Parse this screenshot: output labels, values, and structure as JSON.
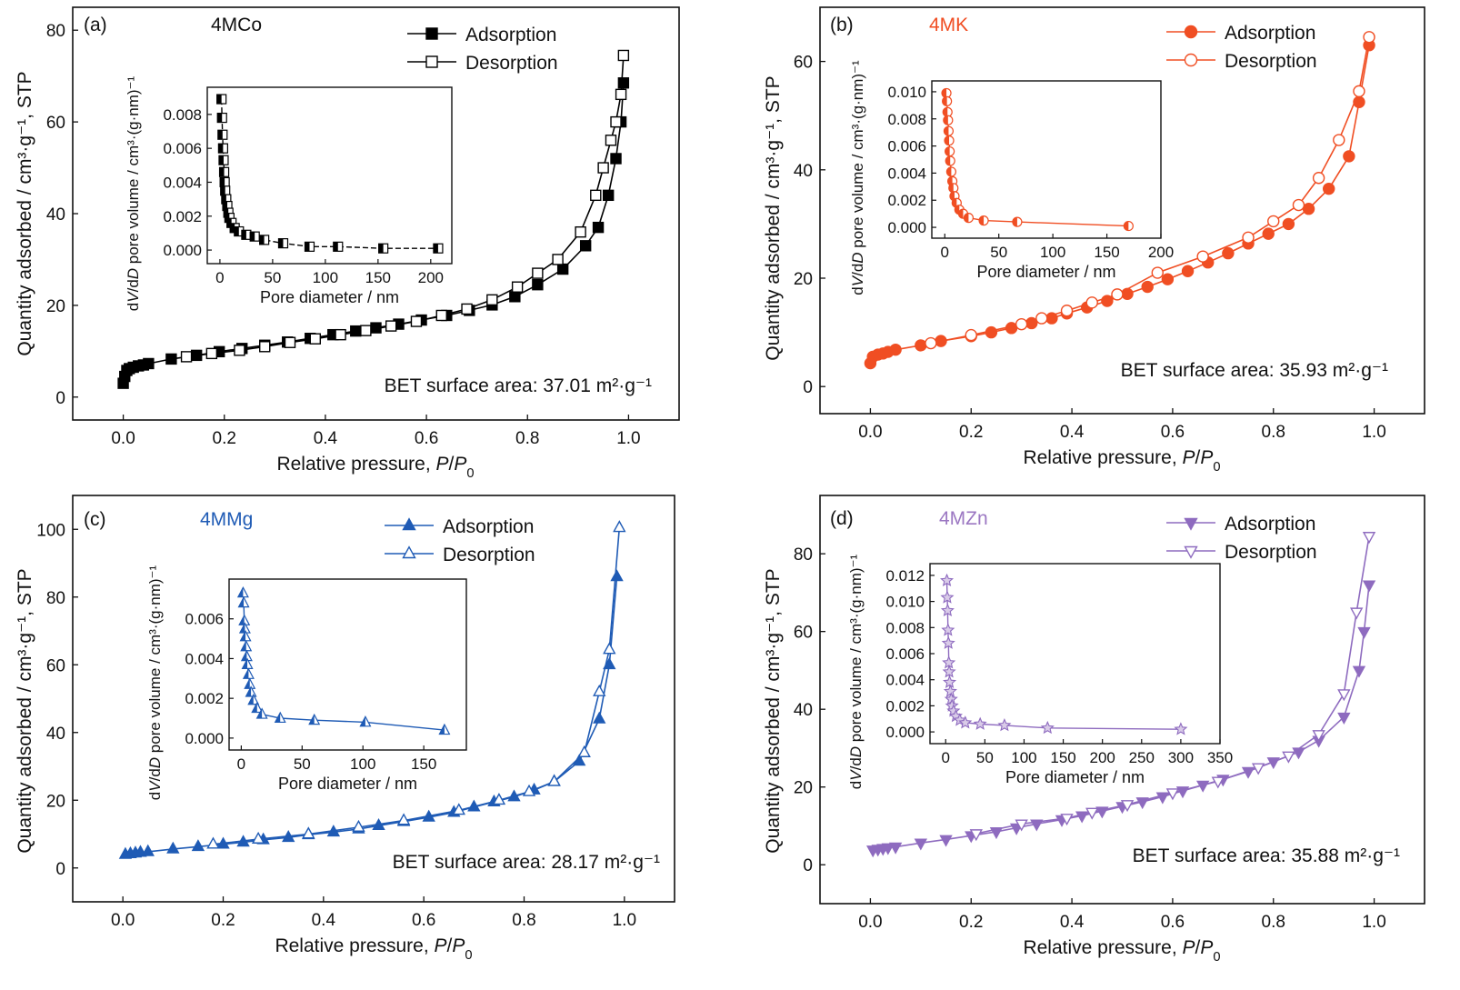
{
  "chart_data": [
    {
      "type": "line",
      "panel": "(a)",
      "sample": "4MCo",
      "sample_color": "#111111",
      "series_color": "#000000",
      "marker": "square",
      "xlabel": "Relative pressure, ",
      "xlabel_italic": "P",
      "xlabel_italic2": "P",
      "xlabel_sub": "0",
      "ylabel": "Quantity adsorbed / cm³·g⁻¹, STP",
      "xlim": [
        -0.1,
        1.1
      ],
      "ylim": [
        -5,
        85
      ],
      "xticks": [
        "0.0",
        "0.2",
        "0.4",
        "0.6",
        "0.8",
        "1.0"
      ],
      "yticks": [
        "0",
        "20",
        "40",
        "60",
        "80"
      ],
      "legend": [
        "Adsorption",
        "Desorption"
      ],
      "bet_text": "BET surface area: 37.01 m²·g⁻¹",
      "series": [
        {
          "name": "Adsorption",
          "filled": true,
          "x": [
            0.0,
            0.003,
            0.007,
            0.012,
            0.02,
            0.03,
            0.04,
            0.05,
            0.095,
            0.145,
            0.19,
            0.235,
            0.28,
            0.325,
            0.37,
            0.415,
            0.46,
            0.5,
            0.545,
            0.59,
            0.64,
            0.685,
            0.73,
            0.775,
            0.82,
            0.87,
            0.915,
            0.94,
            0.96,
            0.975,
            0.985,
            0.99
          ],
          "y": [
            3.0,
            4.5,
            5.8,
            6.2,
            6.5,
            6.8,
            7.0,
            7.3,
            8.3,
            9.1,
            9.9,
            10.6,
            11.3,
            12.0,
            12.8,
            13.6,
            14.4,
            15.1,
            15.9,
            16.8,
            17.8,
            18.9,
            20.1,
            21.9,
            24.5,
            27.9,
            33.0,
            37.0,
            44.0,
            52.0,
            60.0,
            68.5
          ]
        },
        {
          "name": "Desorption",
          "filled": false,
          "x": [
            0.99,
            0.985,
            0.975,
            0.965,
            0.95,
            0.935,
            0.905,
            0.86,
            0.82,
            0.78,
            0.73,
            0.68,
            0.63,
            0.58,
            0.53,
            0.48,
            0.43,
            0.38,
            0.33,
            0.28,
            0.23,
            0.175,
            0.125
          ],
          "y": [
            74.5,
            66.0,
            60.0,
            56.0,
            50.0,
            44.0,
            36.0,
            30.0,
            27.0,
            24.0,
            21.2,
            19.2,
            17.8,
            16.5,
            15.5,
            14.5,
            13.6,
            12.7,
            11.9,
            11.0,
            10.2,
            9.5,
            8.8
          ]
        }
      ],
      "inset": {
        "xlabel": "Pore diameter / nm",
        "ylabel_pre": "d",
        "ylabel_it1": "V",
        "ylabel_mid": "/d",
        "ylabel_it2": "D",
        "ylabel_post": " pore volume / cm³·(g·nm)⁻¹",
        "xlim": [
          -12,
          220
        ],
        "ylim": [
          -0.0008,
          0.0096
        ],
        "xticks": [
          "0",
          "50",
          "100",
          "150",
          "200"
        ],
        "yticks": [
          "0.000",
          "0.002",
          "0.004",
          "0.006",
          "0.008"
        ],
        "xtick_values": [
          0,
          50,
          100,
          150,
          200
        ],
        "ytick_values": [
          0,
          0.002,
          0.004,
          0.006,
          0.008
        ],
        "marker": "square-half",
        "x": [
          1.5,
          2.0,
          2.5,
          3.0,
          3.5,
          4.0,
          4.5,
          5.0,
          6.0,
          7.0,
          8.0,
          9.0,
          11.0,
          14.0,
          18.0,
          25.0,
          33.0,
          42.0,
          60.0,
          85.0,
          112.0,
          155.0,
          207.0
        ],
        "y": [
          0.0089,
          0.0078,
          0.0068,
          0.006,
          0.0053,
          0.0046,
          0.004,
          0.0035,
          0.003,
          0.0026,
          0.0022,
          0.0019,
          0.0016,
          0.0013,
          0.0011,
          0.0009,
          0.0008,
          0.0006,
          0.0004,
          0.0002,
          0.0002,
          0.0001,
          0.0001
        ]
      }
    },
    {
      "type": "line",
      "panel": "(b)",
      "sample": "4MK",
      "sample_color": "#f04e23",
      "series_color": "#f04e23",
      "marker": "circle",
      "xlabel": "Relative pressure, ",
      "xlabel_italic": "P",
      "xlabel_italic2": "P",
      "xlabel_sub": "0",
      "ylabel": "Quantity adsorbed / cm³·g⁻¹, STP",
      "xlim": [
        -0.1,
        1.1
      ],
      "ylim": [
        -5,
        70
      ],
      "xticks": [
        "0.0",
        "0.2",
        "0.4",
        "0.6",
        "0.8",
        "1.0"
      ],
      "yticks": [
        "0",
        "20",
        "40",
        "60"
      ],
      "legend": [
        "Adsorption",
        "Desorption"
      ],
      "bet_text": "BET surface area: 35.93 m²·g⁻¹",
      "series": [
        {
          "name": "Adsorption",
          "filled": true,
          "x": [
            0.0,
            0.005,
            0.015,
            0.025,
            0.035,
            0.05,
            0.1,
            0.14,
            0.2,
            0.24,
            0.28,
            0.32,
            0.36,
            0.39,
            0.43,
            0.47,
            0.51,
            0.55,
            0.59,
            0.63,
            0.67,
            0.71,
            0.75,
            0.79,
            0.83,
            0.87,
            0.91,
            0.95,
            0.97,
            0.99
          ],
          "y": [
            4.3,
            5.5,
            5.9,
            6.1,
            6.4,
            6.8,
            7.6,
            8.4,
            9.3,
            10.0,
            10.8,
            11.7,
            12.6,
            13.5,
            14.6,
            15.8,
            17.1,
            18.4,
            19.8,
            21.3,
            22.9,
            24.6,
            26.4,
            28.2,
            30.0,
            32.8,
            36.5,
            42.5,
            52.5,
            63.0
          ]
        },
        {
          "name": "Desorption",
          "filled": false,
          "x": [
            0.99,
            0.97,
            0.93,
            0.89,
            0.85,
            0.8,
            0.75,
            0.66,
            0.57,
            0.49,
            0.44,
            0.39,
            0.34,
            0.3,
            0.2,
            0.12
          ],
          "y": [
            64.5,
            54.5,
            45.5,
            38.5,
            33.5,
            30.5,
            27.5,
            24.0,
            21.0,
            17.0,
            15.5,
            14.0,
            12.6,
            11.5,
            9.5,
            8.0
          ]
        }
      ],
      "inset": {
        "xlabel": "Pore diameter / nm",
        "ylabel_pre": "d",
        "ylabel_it1": "V",
        "ylabel_mid": "/d",
        "ylabel_it2": "D",
        "ylabel_post": " pore volume / cm³·(g·nm)⁻¹",
        "xlim": [
          -12,
          200
        ],
        "ylim": [
          -0.0008,
          0.0108
        ],
        "xticks": [
          "0",
          "50",
          "100",
          "150",
          "200"
        ],
        "yticks": [
          "0.000",
          "0.002",
          "0.004",
          "0.006",
          "0.008",
          "0.010"
        ],
        "xtick_values": [
          0,
          50,
          100,
          150,
          200
        ],
        "ytick_values": [
          0,
          0.002,
          0.004,
          0.006,
          0.008,
          0.01
        ],
        "marker": "circle-half",
        "x": [
          1.5,
          2.0,
          2.5,
          3.0,
          3.5,
          4.0,
          4.5,
          5.0,
          6.0,
          7.0,
          8.0,
          9.0,
          11.0,
          13.5,
          17.0,
          22.0,
          36.0,
          67.0,
          170.0
        ],
        "y": [
          0.0099,
          0.0093,
          0.0085,
          0.0079,
          0.0071,
          0.0064,
          0.0056,
          0.0049,
          0.0041,
          0.0034,
          0.0029,
          0.0023,
          0.0018,
          0.0013,
          0.001,
          0.0007,
          0.0005,
          0.0004,
          0.0001
        ]
      }
    },
    {
      "type": "line",
      "panel": "(c)",
      "sample": "4MMg",
      "sample_color": "#1f5bb5",
      "series_color": "#1f5bb5",
      "marker": "triangle-up",
      "xlabel": "Relative pressure, ",
      "xlabel_italic": "P",
      "xlabel_italic2": "P",
      "xlabel_sub": "0",
      "ylabel": "Quantity adsorbed / cm³·g⁻¹, STP",
      "xlim": [
        -0.1,
        1.1
      ],
      "ylim": [
        -10,
        110
      ],
      "xticks": [
        "0.0",
        "0.2",
        "0.4",
        "0.6",
        "0.8",
        "1.0"
      ],
      "yticks": [
        "0",
        "20",
        "40",
        "60",
        "80",
        "100"
      ],
      "legend": [
        "Adsorption",
        "Desorption"
      ],
      "bet_text": "BET surface area: 28.17 m²·g⁻¹",
      "series": [
        {
          "name": "Adsorption",
          "filled": true,
          "x": [
            0.005,
            0.015,
            0.025,
            0.035,
            0.05,
            0.1,
            0.15,
            0.2,
            0.24,
            0.28,
            0.33,
            0.37,
            0.42,
            0.47,
            0.51,
            0.56,
            0.61,
            0.66,
            0.7,
            0.74,
            0.78,
            0.82,
            0.86,
            0.91,
            0.95,
            0.97,
            0.985
          ],
          "y": [
            4.0,
            4.2,
            4.4,
            4.6,
            4.8,
            5.6,
            6.3,
            7.0,
            7.6,
            8.3,
            9.0,
            9.8,
            10.6,
            11.5,
            12.5,
            13.7,
            15.0,
            16.4,
            18.0,
            19.5,
            21.0,
            23.0,
            25.5,
            31.5,
            44.0,
            60.0,
            86.0
          ]
        },
        {
          "name": "Desorption",
          "filled": false,
          "x": [
            0.99,
            0.97,
            0.95,
            0.92,
            0.86,
            0.81,
            0.75,
            0.67,
            0.56,
            0.47,
            0.37,
            0.27,
            0.18
          ],
          "y": [
            100.5,
            64.5,
            52.0,
            34.0,
            25.5,
            22.5,
            20.0,
            17.0,
            14.0,
            12.0,
            10.0,
            8.5,
            7.0
          ]
        }
      ],
      "inset": {
        "xlabel": "Pore diameter / nm",
        "ylabel_pre": "d",
        "ylabel_it1": "V",
        "ylabel_mid": "/d",
        "ylabel_it2": "D",
        "ylabel_post": " pore volume / cm³·(g·nm)⁻¹",
        "xlim": [
          -10,
          185
        ],
        "ylim": [
          -0.0006,
          0.008
        ],
        "xticks": [
          "0",
          "50",
          "100",
          "150"
        ],
        "yticks": [
          "0.000",
          "0.002",
          "0.004",
          "0.006"
        ],
        "xtick_values": [
          0,
          50,
          100,
          150
        ],
        "ytick_values": [
          0,
          0.002,
          0.004,
          0.006
        ],
        "marker": "triangle-half",
        "x": [
          1.5,
          2.0,
          2.5,
          3.0,
          3.5,
          4.0,
          4.5,
          5.0,
          6.0,
          7.0,
          8.0,
          10.0,
          13.0,
          17.0,
          32.0,
          60.0,
          102.0,
          167.0
        ],
        "y": [
          0.0073,
          0.0068,
          0.0059,
          0.0055,
          0.0051,
          0.0046,
          0.0041,
          0.0037,
          0.0032,
          0.0027,
          0.0023,
          0.0019,
          0.0015,
          0.0012,
          0.001,
          0.0009,
          0.0008,
          0.0004
        ]
      }
    },
    {
      "type": "line",
      "panel": "(d)",
      "sample": "4MZn",
      "sample_color": "#9b77c2",
      "series_color": "#8e6bbf",
      "marker": "triangle-down",
      "xlabel": "Relative pressure, ",
      "xlabel_italic": "P",
      "xlabel_italic2": "P",
      "xlabel_sub": "0",
      "ylabel": "Quantity adsorbed / cm³·g⁻¹, STP",
      "xlim": [
        -0.1,
        1.1
      ],
      "ylim": [
        -10,
        95
      ],
      "xticks": [
        "0.0",
        "0.2",
        "0.4",
        "0.6",
        "0.8",
        "1.0"
      ],
      "yticks": [
        "0",
        "20",
        "40",
        "60",
        "80"
      ],
      "legend": [
        "Adsorption",
        "Desorption"
      ],
      "bet_text": "BET surface area: 35.88 m²·g⁻¹",
      "series": [
        {
          "name": "Adsorption",
          "filled": true,
          "x": [
            0.005,
            0.015,
            0.025,
            0.035,
            0.05,
            0.1,
            0.15,
            0.2,
            0.25,
            0.29,
            0.33,
            0.38,
            0.42,
            0.46,
            0.5,
            0.54,
            0.58,
            0.62,
            0.66,
            0.7,
            0.75,
            0.8,
            0.85,
            0.89,
            0.94,
            0.97,
            0.98,
            0.99
          ],
          "y": [
            3.8,
            4.0,
            4.2,
            4.4,
            4.6,
            5.6,
            6.5,
            7.5,
            8.5,
            9.5,
            10.5,
            11.6,
            12.6,
            13.8,
            15.0,
            16.2,
            17.5,
            19.0,
            20.5,
            22.0,
            24.0,
            26.5,
            29.0,
            32.0,
            38.0,
            50.0,
            60.0,
            72.0
          ]
        },
        {
          "name": "Desorption",
          "filled": false,
          "x": [
            0.99,
            0.965,
            0.94,
            0.89,
            0.83,
            0.77,
            0.69,
            0.6,
            0.51,
            0.44,
            0.39,
            0.3,
            0.21
          ],
          "y": [
            84.5,
            65.0,
            44.0,
            33.5,
            28.0,
            25.0,
            21.5,
            18.5,
            15.5,
            13.5,
            12.0,
            10.5,
            8.0
          ]
        }
      ],
      "inset": {
        "xlabel": "Pore diameter / nm",
        "ylabel_pre": "d",
        "ylabel_it1": "V",
        "ylabel_mid": "/d",
        "ylabel_it2": "D",
        "ylabel_post": " pore volume / cm³·(g·nm)⁻¹",
        "xlim": [
          -20,
          350
        ],
        "ylim": [
          -0.0009,
          0.0129
        ],
        "xticks": [
          "0",
          "50",
          "100",
          "150",
          "200",
          "250",
          "300",
          "350"
        ],
        "yticks": [
          "0.000",
          "0.002",
          "0.004",
          "0.006",
          "0.008",
          "0.010",
          "0.012"
        ],
        "xtick_values": [
          0,
          50,
          100,
          150,
          200,
          250,
          300,
          350
        ],
        "ytick_values": [
          0,
          0.002,
          0.004,
          0.006,
          0.008,
          0.01,
          0.012
        ],
        "marker": "star",
        "x": [
          1.5,
          2.0,
          2.5,
          3.0,
          3.5,
          4.0,
          4.5,
          5.0,
          6.0,
          7.0,
          8.0,
          10.0,
          13.0,
          18.0,
          25.0,
          44.0,
          75.0,
          130.0,
          300.0
        ],
        "y": [
          0.0116,
          0.0103,
          0.0093,
          0.0078,
          0.0068,
          0.0053,
          0.0046,
          0.0038,
          0.0031,
          0.0025,
          0.002,
          0.0016,
          0.0012,
          0.0009,
          0.0007,
          0.0006,
          0.0005,
          0.0003,
          0.0002
        ]
      }
    }
  ]
}
